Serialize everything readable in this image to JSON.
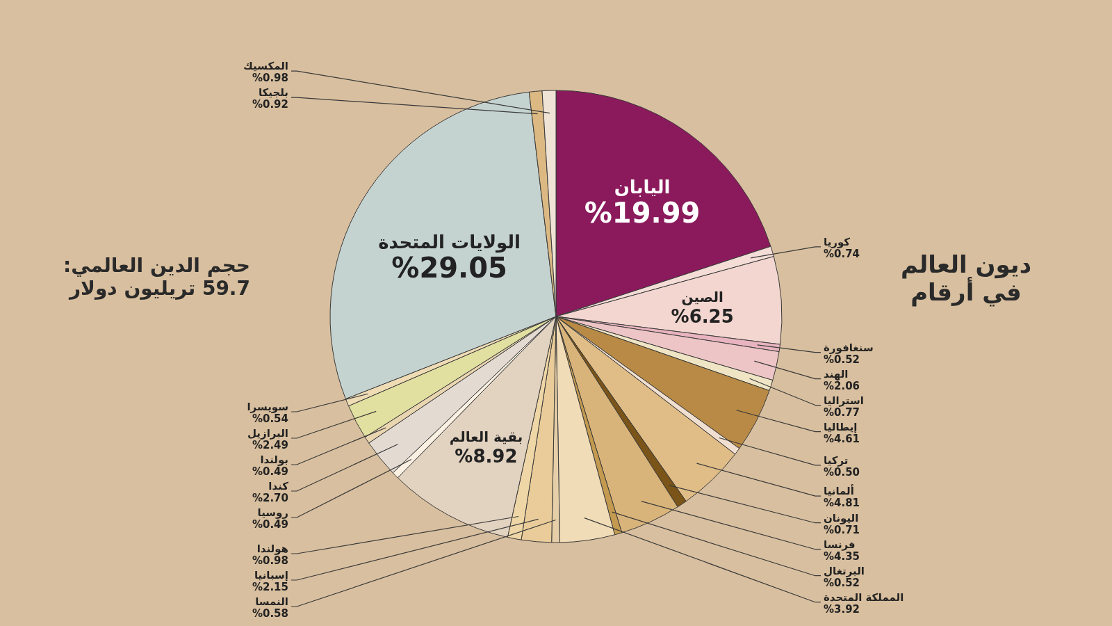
{
  "chart_data": {
    "type": "pie",
    "title": "ديون العالم في أرقام",
    "subtitle": "حجم الدين العالمي: 59.7 تريليون دولار",
    "categories": [
      "اليابان",
      "كوريا",
      "الصين",
      "سنغافورة",
      "الهند",
      "استراليا",
      "إيطاليا",
      "تركيا",
      "ألمانيا",
      "اليونان",
      "فرنسا",
      "البرتغال",
      "المملكة المتحدة",
      "النمسا",
      "إسبانيا",
      "هولندا",
      "بقية العالم",
      "روسيا",
      "كندا",
      "بولندا",
      "البرازيل",
      "سويسرا",
      "الولايات المتحدة",
      "بلجيكا",
      "المكسيك"
    ],
    "values": [
      19.99,
      0.74,
      6.25,
      0.52,
      2.06,
      0.77,
      4.61,
      0.5,
      4.81,
      0.71,
      4.35,
      0.52,
      3.92,
      0.58,
      2.15,
      0.98,
      8.92,
      0.49,
      2.7,
      0.49,
      2.49,
      0.54,
      29.05,
      0.92,
      0.98
    ],
    "value_labels": [
      "%19.99",
      "%0.74",
      "%6.25",
      "%0.52",
      "%2.06",
      "%0.77",
      "%4.61",
      "%0.50",
      "%4.81",
      "%0.71",
      "%4.35",
      "%0.52",
      "%3.92",
      "%0.58",
      "%2.15",
      "%0.98",
      "%8.92",
      "%0.49",
      "%2.70",
      "%0.49",
      "%2.49",
      "%0.54",
      "%29.05",
      "%0.92",
      "%0.98"
    ],
    "colors": [
      "#8b1a5c",
      "#f4ddd7",
      "#f3d6d0",
      "#e8b4bf",
      "#eec5c6",
      "#efe5c5",
      "#b88a45",
      "#f0dfd0",
      "#e0bd86",
      "#7a5418",
      "#d9b47a",
      "#c39a4f",
      "#f1dcb8",
      "#e6cfa8",
      "#e9cc99",
      "#efd6a6",
      "#e2d2c0",
      "#fbf1e2",
      "#e3dbd2",
      "#e9d5b0",
      "#e1e0a0",
      "#efdcb5",
      "#c5d3d0",
      "#dcb983",
      "#efe3d5"
    ]
  }
}
